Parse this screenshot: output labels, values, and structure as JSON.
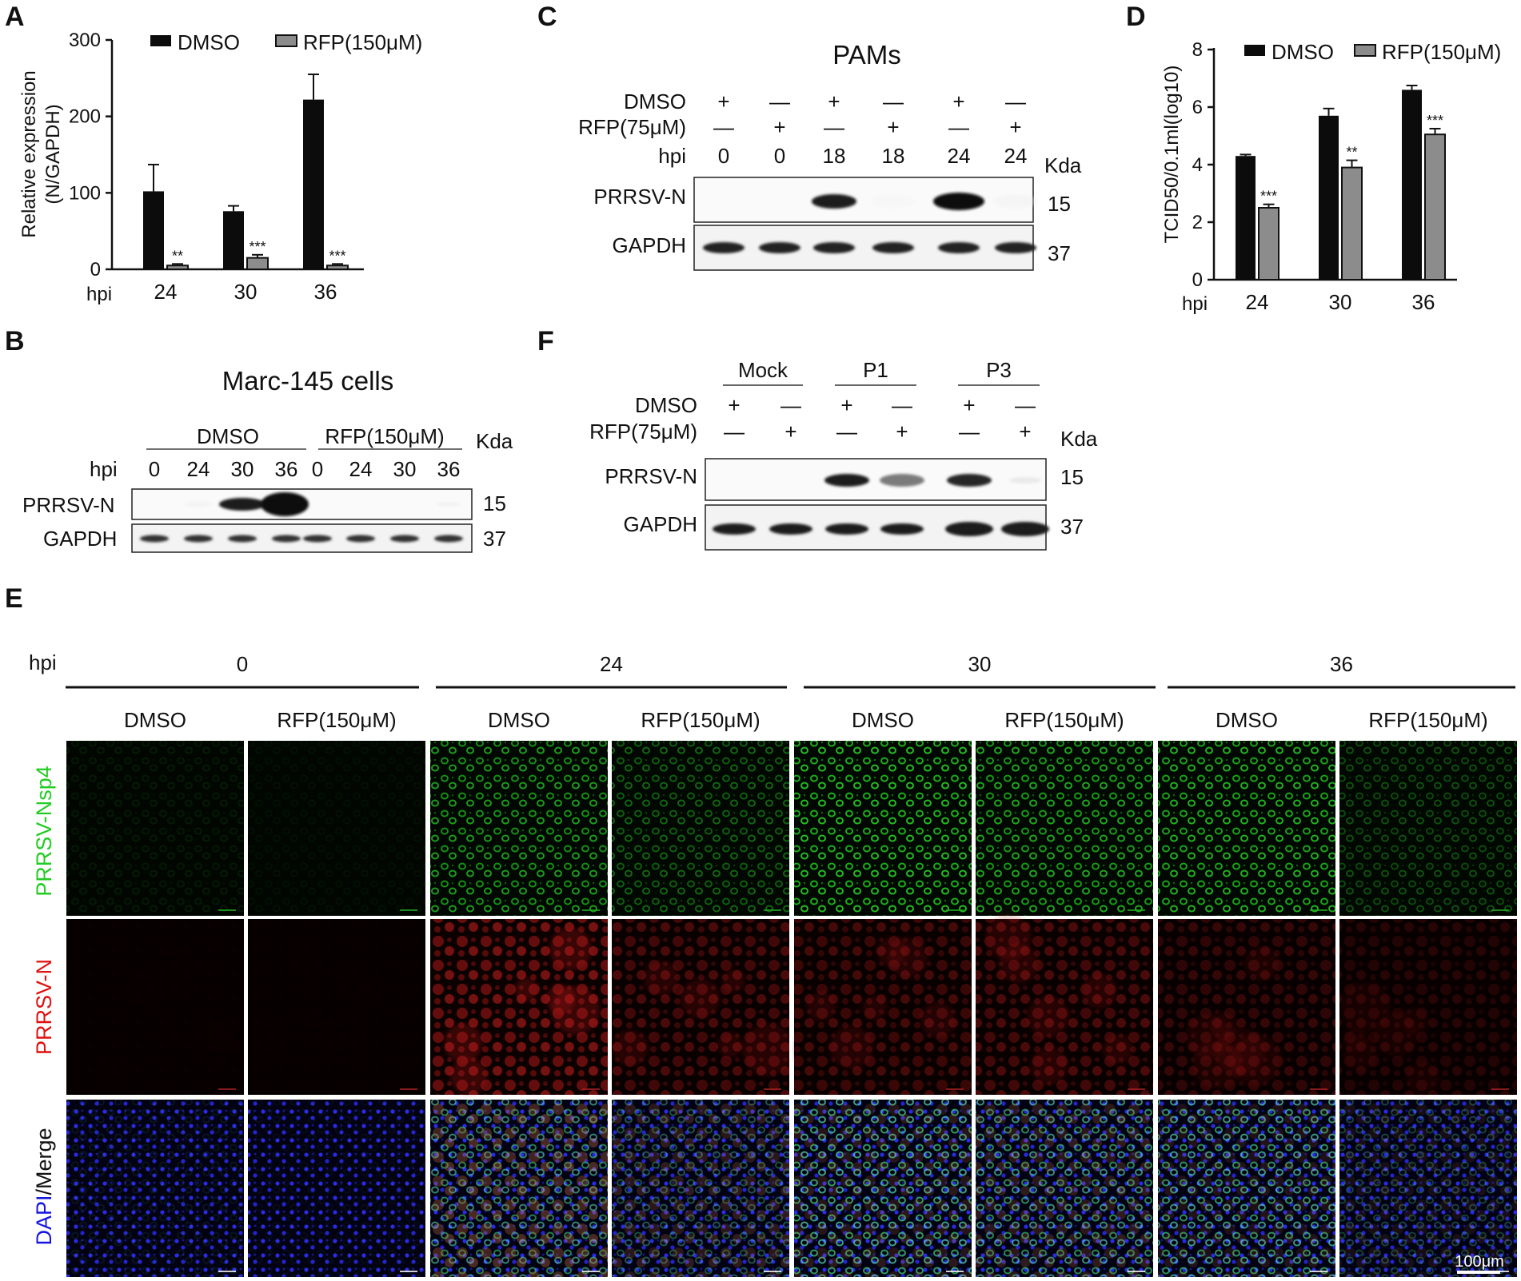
{
  "panel_letters": {
    "a": "A",
    "b": "B",
    "c": "C",
    "d": "D",
    "e": "E",
    "f": "F"
  },
  "colors": {
    "dmso_bar": "#0c0c0c",
    "rfp_bar": "#8c8c8c",
    "nsp4": "#00c800",
    "n": "#e01010",
    "dapi": "#1515e0"
  },
  "panel_a": {
    "hpi_label": "hpi",
    "star_labels": [
      "**",
      "***",
      "***"
    ]
  },
  "panel_b": {
    "title": "Marc-145 cells",
    "group_dmso": "DMSO",
    "group_rfp": "RFP(150μM)",
    "kda": "Kda",
    "hpi_label": "hpi",
    "lanes": [
      "0",
      "24",
      "30",
      "36",
      "0",
      "24",
      "30",
      "36"
    ],
    "band_prrsv": "PRRSV-N",
    "band_gapdh": "GAPDH",
    "mw_prrsv": "15",
    "mw_gapdh": "37"
  },
  "panel_c": {
    "title": "PAMs",
    "row_dmso": "DMSO",
    "row_rfp": "RFP(75μM)",
    "row_hpi": "hpi",
    "kda": "Kda",
    "dmso_marks": [
      "+",
      "—",
      "+",
      "—",
      "+",
      "—"
    ],
    "rfp_marks": [
      "—",
      "+",
      "—",
      "+",
      "—",
      "+"
    ],
    "hpi_values": [
      "0",
      "0",
      "18",
      "18",
      "24",
      "24"
    ],
    "band_prrsv": "PRRSV-N",
    "band_gapdh": "GAPDH",
    "mw_prrsv": "15",
    "mw_gapdh": "37"
  },
  "panel_d": {
    "hpi_label": "hpi",
    "star_labels": [
      "***",
      "**",
      "***"
    ]
  },
  "panel_f": {
    "groups": [
      "Mock",
      "P1",
      "P3"
    ],
    "row_dmso": "DMSO",
    "row_rfp": "RFP(75μM)",
    "kda": "Kda",
    "dmso_marks": [
      "+",
      "—",
      "+",
      "—",
      "+",
      "—"
    ],
    "rfp_marks": [
      "—",
      "+",
      "—",
      "+",
      "—",
      "+"
    ],
    "band_prrsv": "PRRSV-N",
    "band_gapdh": "GAPDH",
    "mw_prrsv": "15",
    "mw_gapdh": "37"
  },
  "panel_e": {
    "hpi_label": "hpi",
    "timepoints": [
      "0",
      "24",
      "30",
      "36"
    ],
    "conditions": [
      "DMSO",
      "RFP(150μM)",
      "DMSO",
      "RFP(150μM)",
      "DMSO",
      "RFP(150μM)",
      "DMSO",
      "RFP(150μM)"
    ],
    "row_labels": {
      "nsp4": "PRRSV-Nsp4",
      "n": "PRRSV-N",
      "dapi": "DAPI",
      "merge": "/Merge"
    },
    "nsp4_intensity": [
      0.1,
      0.05,
      0.7,
      0.45,
      0.85,
      0.75,
      0.8,
      0.35
    ],
    "n_intensity": [
      0.02,
      0.02,
      0.8,
      0.5,
      0.45,
      0.5,
      0.35,
      0.25
    ],
    "scale_bar": "100μm"
  },
  "chart_data": [
    {
      "type": "bar",
      "panel": "A",
      "ylabel": "Relative expression\n(N/GAPDH)",
      "xlabel": "hpi",
      "categories": [
        "24",
        "30",
        "36"
      ],
      "ylim": [
        0,
        300
      ],
      "yticks": [
        0,
        100,
        200,
        300
      ],
      "legend": "top",
      "series": [
        {
          "name": "DMSO",
          "values": [
            102,
            76,
            222
          ],
          "errors": [
            35,
            7,
            33
          ]
        },
        {
          "name": "RFP(150μM)",
          "values": [
            5,
            15,
            5
          ],
          "errors": [
            2,
            4,
            2
          ]
        }
      ],
      "annotations": [
        "**",
        "***",
        "***"
      ]
    },
    {
      "type": "bar",
      "panel": "D",
      "ylabel": "TCID50/0.1ml(log10)",
      "xlabel": "hpi",
      "categories": [
        "24",
        "30",
        "36"
      ],
      "ylim": [
        0,
        8
      ],
      "yticks": [
        0,
        2,
        4,
        6,
        8
      ],
      "legend": "top",
      "series": [
        {
          "name": "DMSO",
          "values": [
            4.3,
            5.7,
            6.6
          ],
          "errors": [
            0.05,
            0.25,
            0.15
          ]
        },
        {
          "name": "RFP(150μM)",
          "values": [
            2.5,
            3.9,
            5.05
          ],
          "errors": [
            0.12,
            0.25,
            0.2
          ]
        }
      ],
      "annotations": [
        "***",
        "**",
        "***"
      ]
    }
  ]
}
